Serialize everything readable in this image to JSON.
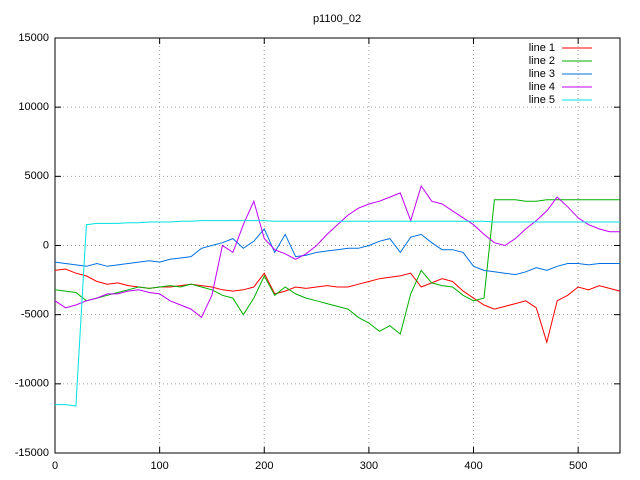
{
  "chart_data": {
    "type": "line",
    "title": "p1100_02",
    "x": [
      0,
      10,
      20,
      30,
      40,
      50,
      60,
      70,
      80,
      90,
      100,
      110,
      120,
      130,
      140,
      150,
      160,
      170,
      180,
      190,
      200,
      210,
      220,
      230,
      240,
      250,
      260,
      270,
      280,
      290,
      300,
      310,
      320,
      330,
      340,
      350,
      360,
      370,
      380,
      390,
      400,
      410,
      420,
      430,
      440,
      450,
      460,
      470,
      480,
      490,
      500,
      510,
      520,
      530,
      540
    ],
    "xlim": [
      0,
      540
    ],
    "xticks": [
      0,
      100,
      200,
      300,
      400,
      500
    ],
    "ylim": [
      -15000,
      15000
    ],
    "yticks": [
      -15000,
      -10000,
      -5000,
      0,
      5000,
      10000,
      15000
    ],
    "grid": true,
    "legend": "top-right",
    "series": [
      {
        "name": "line 1",
        "color": "#ff0000",
        "values": [
          -1800,
          -1700,
          -2000,
          -2200,
          -2600,
          -2800,
          -2700,
          -2900,
          -3000,
          -3100,
          -3000,
          -3000,
          -2900,
          -2800,
          -2900,
          -3000,
          -3200,
          -3300,
          -3200,
          -3000,
          -2000,
          -3500,
          -3300,
          -3000,
          -3100,
          -3000,
          -2900,
          -3000,
          -3000,
          -2800,
          -2600,
          -2400,
          -2300,
          -2200,
          -2000,
          -3000,
          -2700,
          -2400,
          -2600,
          -3300,
          -3800,
          -4300,
          -4600,
          -4400,
          -4200,
          -4000,
          -4500,
          -7000,
          -4000,
          -3600,
          -3000,
          -3200,
          -2900,
          -3100,
          -3300
        ]
      },
      {
        "name": "line 2",
        "color": "#00b000",
        "values": [
          -3200,
          -3300,
          -3400,
          -4000,
          -3800,
          -3600,
          -3400,
          -3200,
          -3000,
          -3100,
          -3000,
          -2900,
          -3000,
          -2800,
          -3000,
          -3200,
          -3600,
          -3800,
          -5000,
          -3800,
          -2200,
          -3600,
          -3000,
          -3500,
          -3800,
          -4000,
          -4200,
          -4400,
          -4600,
          -5200,
          -5600,
          -6200,
          -5800,
          -6400,
          -3500,
          -1800,
          -2700,
          -2900,
          -3000,
          -3600,
          -4000,
          -3800,
          3300,
          3300,
          3300,
          3200,
          3200,
          3300,
          3300,
          3300,
          3300,
          3300,
          3300,
          3300,
          3300
        ]
      },
      {
        "name": "line 3",
        "color": "#0070e0",
        "values": [
          -1200,
          -1300,
          -1400,
          -1500,
          -1300,
          -1500,
          -1400,
          -1300,
          -1200,
          -1100,
          -1200,
          -1000,
          -900,
          -800,
          -200,
          0,
          200,
          500,
          -200,
          300,
          1200,
          -500,
          800,
          -800,
          -700,
          -500,
          -400,
          -300,
          -200,
          -200,
          0,
          300,
          500,
          -500,
          600,
          800,
          200,
          -300,
          -300,
          -500,
          -1500,
          -1800,
          -1900,
          -2000,
          -2100,
          -1900,
          -1600,
          -1800,
          -1500,
          -1300,
          -1300,
          -1400,
          -1300,
          -1300,
          -1300
        ]
      },
      {
        "name": "line 4",
        "color": "#c000ff",
        "values": [
          -4000,
          -4500,
          -4300,
          -4000,
          -3800,
          -3500,
          -3500,
          -3300,
          -3200,
          -3400,
          -3500,
          -4000,
          -4300,
          -4600,
          -5200,
          -3600,
          0,
          -500,
          1500,
          3200,
          500,
          -300,
          -600,
          -1000,
          -600,
          0,
          800,
          1500,
          2200,
          2700,
          3000,
          3200,
          3500,
          3800,
          1800,
          4300,
          3200,
          3000,
          2500,
          2000,
          1500,
          800,
          200,
          0,
          500,
          1200,
          1800,
          2500,
          3500,
          2800,
          2000,
          1500,
          1200,
          1000,
          1000
        ]
      },
      {
        "name": "line 5",
        "color": "#00e0e0",
        "values": [
          -11500,
          -11500,
          -11600,
          1500,
          1600,
          1600,
          1600,
          1650,
          1650,
          1700,
          1700,
          1700,
          1750,
          1750,
          1800,
          1800,
          1800,
          1800,
          1800,
          1800,
          1800,
          1750,
          1750,
          1750,
          1750,
          1750,
          1750,
          1750,
          1750,
          1750,
          1750,
          1750,
          1750,
          1750,
          1750,
          1750,
          1750,
          1750,
          1750,
          1750,
          1750,
          1750,
          1700,
          1700,
          1700,
          1700,
          1700,
          1700,
          1700,
          1700,
          1700,
          1700,
          1700,
          1700,
          1700
        ]
      }
    ]
  }
}
